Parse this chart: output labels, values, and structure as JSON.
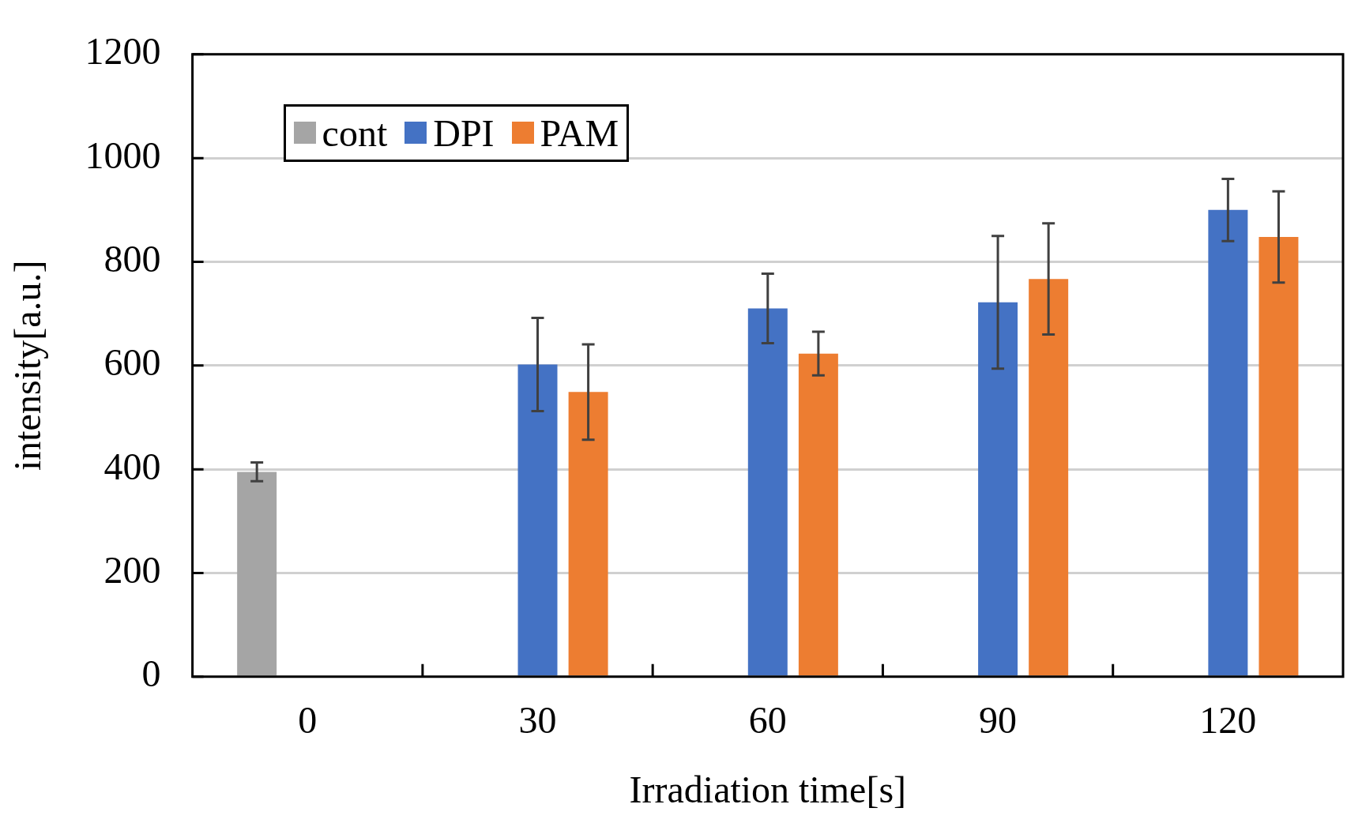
{
  "chart_data": {
    "type": "bar",
    "xlabel": "Irradiation time[s]",
    "ylabel": "intensity[a.u.]",
    "categories": [
      "0",
      "30",
      "60",
      "90",
      "120"
    ],
    "series": [
      {
        "name": "cont",
        "color": "#a5a5a5",
        "values": [
          395,
          null,
          null,
          null,
          null
        ],
        "errors": [
          18,
          null,
          null,
          null,
          null
        ]
      },
      {
        "name": "DPI",
        "color": "#4472c4",
        "values": [
          null,
          602,
          710,
          722,
          900
        ],
        "errors": [
          null,
          90,
          67,
          128,
          60
        ]
      },
      {
        "name": "PAM",
        "color": "#ed7d31",
        "values": [
          null,
          549,
          623,
          767,
          848
        ],
        "errors": [
          null,
          92,
          42,
          107,
          88
        ]
      }
    ],
    "ylim": [
      0,
      1200
    ],
    "yticks": [
      0,
      200,
      400,
      600,
      800,
      1000,
      1200
    ],
    "grid": "y",
    "legend": "top left"
  }
}
